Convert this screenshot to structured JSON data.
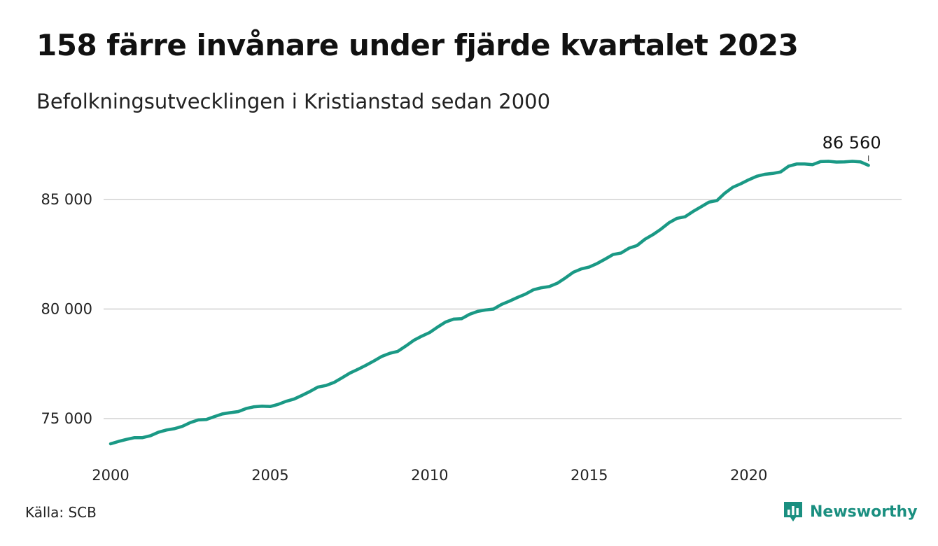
{
  "title": "158 färre invånare under fjärde kvartalet 2023",
  "subtitle": "Befolkningsutvecklingen i Kristianstad sedan 2000",
  "source": "Källa: SCB",
  "brand": {
    "name": "Newsworthy",
    "icon": "bar-chart-icon",
    "color": "#1a8f80"
  },
  "chart_data": {
    "type": "line",
    "title": "158 färre invånare under fjärde kvartalet 2023",
    "subtitle": "Befolkningsutvecklingen i Kristianstad sedan 2000",
    "xlabel": "",
    "ylabel": "",
    "xlim": [
      2000,
      2024
    ],
    "ylim": [
      73500,
      87800
    ],
    "x_ticks": [
      2000,
      2005,
      2010,
      2015,
      2020
    ],
    "x_tick_labels": [
      "2000",
      "2005",
      "2010",
      "2015",
      "2020"
    ],
    "y_ticks": [
      75000,
      80000,
      85000
    ],
    "y_tick_labels": [
      "75 000",
      "80 000",
      "85 000"
    ],
    "grid": "horizontal",
    "line_color": "#1a9985",
    "end_label": "86 560",
    "series": [
      {
        "x": [
          2000.0,
          2000.25,
          2000.5,
          2000.75,
          2001.0,
          2001.25,
          2001.5,
          2001.75,
          2002.0,
          2002.25,
          2002.5,
          2002.75,
          2003.0,
          2003.25,
          2003.5,
          2003.75,
          2004.0,
          2004.25,
          2004.5,
          2004.75,
          2005.0,
          2005.25,
          2005.5,
          2005.75,
          2006.0,
          2006.25,
          2006.5,
          2006.75,
          2007.0,
          2007.25,
          2007.5,
          2007.75,
          2008.0,
          2008.25,
          2008.5,
          2008.75,
          2009.0,
          2009.25,
          2009.5,
          2009.75,
          2010.0,
          2010.25,
          2010.5,
          2010.75,
          2011.0,
          2011.25,
          2011.5,
          2011.75,
          2012.0,
          2012.25,
          2012.5,
          2012.75,
          2013.0,
          2013.25,
          2013.5,
          2013.75,
          2014.0,
          2014.25,
          2014.5,
          2014.75,
          2015.0,
          2015.25,
          2015.5,
          2015.75,
          2016.0,
          2016.25,
          2016.5,
          2016.75,
          2017.0,
          2017.25,
          2017.5,
          2017.75,
          2018.0,
          2018.25,
          2018.5,
          2018.75,
          2019.0,
          2019.25,
          2019.5,
          2019.75,
          2020.0,
          2020.25,
          2020.5,
          2020.75,
          2021.0,
          2021.25,
          2021.5,
          2021.75,
          2022.0,
          2022.25,
          2022.5,
          2022.75,
          2023.0,
          2023.25,
          2023.5,
          2023.75
        ],
        "values": [
          73850,
          73960,
          74050,
          74130,
          74130,
          74220,
          74380,
          74480,
          74540,
          74650,
          74820,
          74940,
          74960,
          75090,
          75210,
          75270,
          75320,
          75460,
          75540,
          75570,
          75550,
          75650,
          75790,
          75890,
          76060,
          76240,
          76440,
          76510,
          76650,
          76860,
          77080,
          77250,
          77430,
          77630,
          77840,
          77980,
          78070,
          78310,
          78570,
          78760,
          78930,
          79180,
          79410,
          79540,
          79560,
          79760,
          79890,
          79960,
          80000,
          80210,
          80360,
          80530,
          80680,
          80880,
          80970,
          81030,
          81180,
          81420,
          81680,
          81830,
          81920,
          82080,
          82280,
          82490,
          82560,
          82780,
          82900,
          83190,
          83400,
          83650,
          83940,
          84140,
          84210,
          84450,
          84660,
          84880,
          84950,
          85290,
          85560,
          85720,
          85900,
          86060,
          86150,
          86190,
          86260,
          86520,
          86620,
          86620,
          86590,
          86730,
          86740,
          86710,
          86720,
          86740,
          86718,
          86560
        ]
      }
    ]
  }
}
